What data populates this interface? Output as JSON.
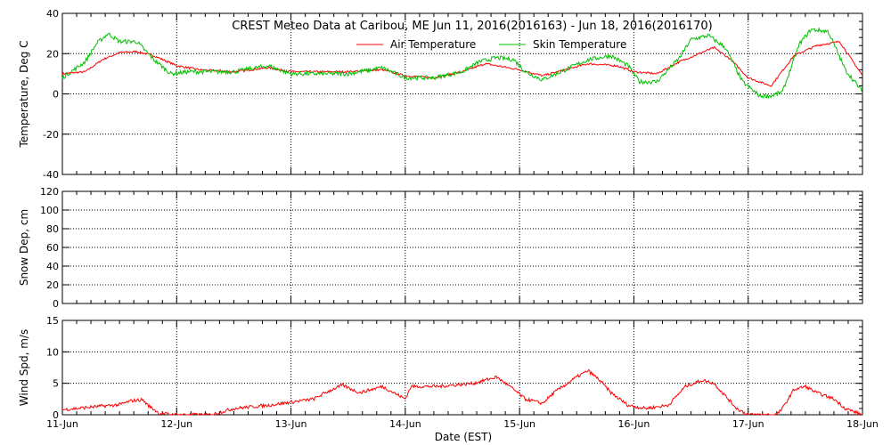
{
  "chart_data": {
    "title": "CREST Meteo Data at Caribou, ME   Jun 11, 2016(2016163) - Jun 18, 2016(2016170)",
    "xlabel": "Date (EST)",
    "x_ticks": [
      "11-Jun",
      "12-Jun",
      "13-Jun",
      "14-Jun",
      "15-Jun",
      "16-Jun",
      "17-Jun",
      "18-Jun"
    ],
    "x_range_days": [
      0,
      7
    ],
    "panels": [
      {
        "type": "line",
        "ylabel": "Temperature, Deg C",
        "ylim": [
          -40,
          40
        ],
        "yticks": [
          -40,
          -20,
          0,
          20,
          40
        ],
        "grid": true,
        "legend_position": "top-center",
        "series": [
          {
            "name": "Air Temperature",
            "color": "#ff0000",
            "points": [
              [
                0,
                10
              ],
              [
                0.2,
                11
              ],
              [
                0.35,
                17
              ],
              [
                0.5,
                20.5
              ],
              [
                0.65,
                21
              ],
              [
                0.8,
                19
              ],
              [
                1.0,
                14
              ],
              [
                1.2,
                12
              ],
              [
                1.5,
                11
              ],
              [
                1.8,
                13
              ],
              [
                2.0,
                11
              ],
              [
                2.5,
                11
              ],
              [
                2.8,
                12
              ],
              [
                3.0,
                9
              ],
              [
                3.25,
                8
              ],
              [
                3.5,
                11
              ],
              [
                3.7,
                15
              ],
              [
                4.0,
                12
              ],
              [
                4.2,
                9
              ],
              [
                4.4,
                12
              ],
              [
                4.6,
                15
              ],
              [
                4.85,
                14
              ],
              [
                5.0,
                11
              ],
              [
                5.2,
                10
              ],
              [
                5.4,
                16
              ],
              [
                5.7,
                23
              ],
              [
                5.85,
                17
              ],
              [
                6.0,
                8
              ],
              [
                6.2,
                4
              ],
              [
                6.4,
                19
              ],
              [
                6.6,
                24
              ],
              [
                6.8,
                26
              ],
              [
                7.0,
                9
              ]
            ]
          },
          {
            "name": "Skin Temperature",
            "color": "#00c000",
            "points": [
              [
                0,
                8
              ],
              [
                0.2,
                16
              ],
              [
                0.3,
                25
              ],
              [
                0.4,
                30
              ],
              [
                0.5,
                26
              ],
              [
                0.65,
                26
              ],
              [
                0.8,
                17
              ],
              [
                0.95,
                10
              ],
              [
                1.1,
                11
              ],
              [
                1.3,
                11
              ],
              [
                1.5,
                11
              ],
              [
                1.8,
                14
              ],
              [
                2.0,
                10
              ],
              [
                2.5,
                10
              ],
              [
                2.8,
                13
              ],
              [
                3.0,
                8
              ],
              [
                3.25,
                8
              ],
              [
                3.5,
                11
              ],
              [
                3.65,
                16
              ],
              [
                3.8,
                18
              ],
              [
                3.95,
                17
              ],
              [
                4.05,
                11
              ],
              [
                4.2,
                7
              ],
              [
                4.4,
                12
              ],
              [
                4.6,
                17
              ],
              [
                4.8,
                19
              ],
              [
                4.95,
                14
              ],
              [
                5.05,
                6
              ],
              [
                5.2,
                6
              ],
              [
                5.4,
                18
              ],
              [
                5.5,
                27
              ],
              [
                5.65,
                29
              ],
              [
                5.8,
                23
              ],
              [
                5.95,
                6
              ],
              [
                6.1,
                -1
              ],
              [
                6.2,
                -1
              ],
              [
                6.3,
                1
              ],
              [
                6.45,
                25
              ],
              [
                6.55,
                32
              ],
              [
                6.7,
                31
              ],
              [
                6.85,
                12
              ],
              [
                7.0,
                1
              ]
            ]
          }
        ]
      },
      {
        "type": "line",
        "ylabel": "Snow Dep, cm",
        "ylim": [
          0,
          120
        ],
        "yticks": [
          0,
          20,
          40,
          60,
          80,
          100,
          120
        ],
        "grid": true,
        "series": []
      },
      {
        "type": "line",
        "ylabel": "Wind Spd, m/s",
        "ylim": [
          0,
          15
        ],
        "yticks": [
          0,
          5,
          10,
          15
        ],
        "grid": true,
        "series": [
          {
            "name": "",
            "color": "#ff0000",
            "points": [
              [
                0,
                0.8
              ],
              [
                0.3,
                1.3
              ],
              [
                0.5,
                1.6
              ],
              [
                0.6,
                2.2
              ],
              [
                0.7,
                2.4
              ],
              [
                0.75,
                1.5
              ],
              [
                0.85,
                0.2
              ],
              [
                1.0,
                0
              ],
              [
                1.3,
                0
              ],
              [
                1.5,
                1.0
              ],
              [
                1.8,
                1.5
              ],
              [
                2.0,
                2.0
              ],
              [
                2.2,
                2.5
              ],
              [
                2.3,
                3.5
              ],
              [
                2.45,
                4.7
              ],
              [
                2.6,
                3.5
              ],
              [
                2.8,
                4.5
              ],
              [
                2.9,
                3.5
              ],
              [
                3.0,
                2.5
              ],
              [
                3.05,
                4.5
              ],
              [
                3.3,
                4.5
              ],
              [
                3.6,
                5.0
              ],
              [
                3.8,
                6.0
              ],
              [
                3.95,
                4.0
              ],
              [
                4.05,
                2.5
              ],
              [
                4.2,
                1.8
              ],
              [
                4.3,
                3.5
              ],
              [
                4.5,
                6.0
              ],
              [
                4.6,
                7.0
              ],
              [
                4.7,
                5.5
              ],
              [
                4.8,
                3.5
              ],
              [
                4.95,
                1.5
              ],
              [
                5.1,
                1.0
              ],
              [
                5.3,
                1.5
              ],
              [
                5.45,
                4.5
              ],
              [
                5.6,
                5.5
              ],
              [
                5.7,
                5.0
              ],
              [
                5.8,
                3.0
              ],
              [
                5.9,
                1.0
              ],
              [
                6.0,
                0
              ],
              [
                6.25,
                0
              ],
              [
                6.3,
                1.0
              ],
              [
                6.4,
                4.0
              ],
              [
                6.5,
                4.5
              ],
              [
                6.6,
                3.5
              ],
              [
                6.75,
                2.5
              ],
              [
                6.85,
                1.0
              ],
              [
                7.0,
                0
              ]
            ]
          }
        ]
      }
    ]
  }
}
